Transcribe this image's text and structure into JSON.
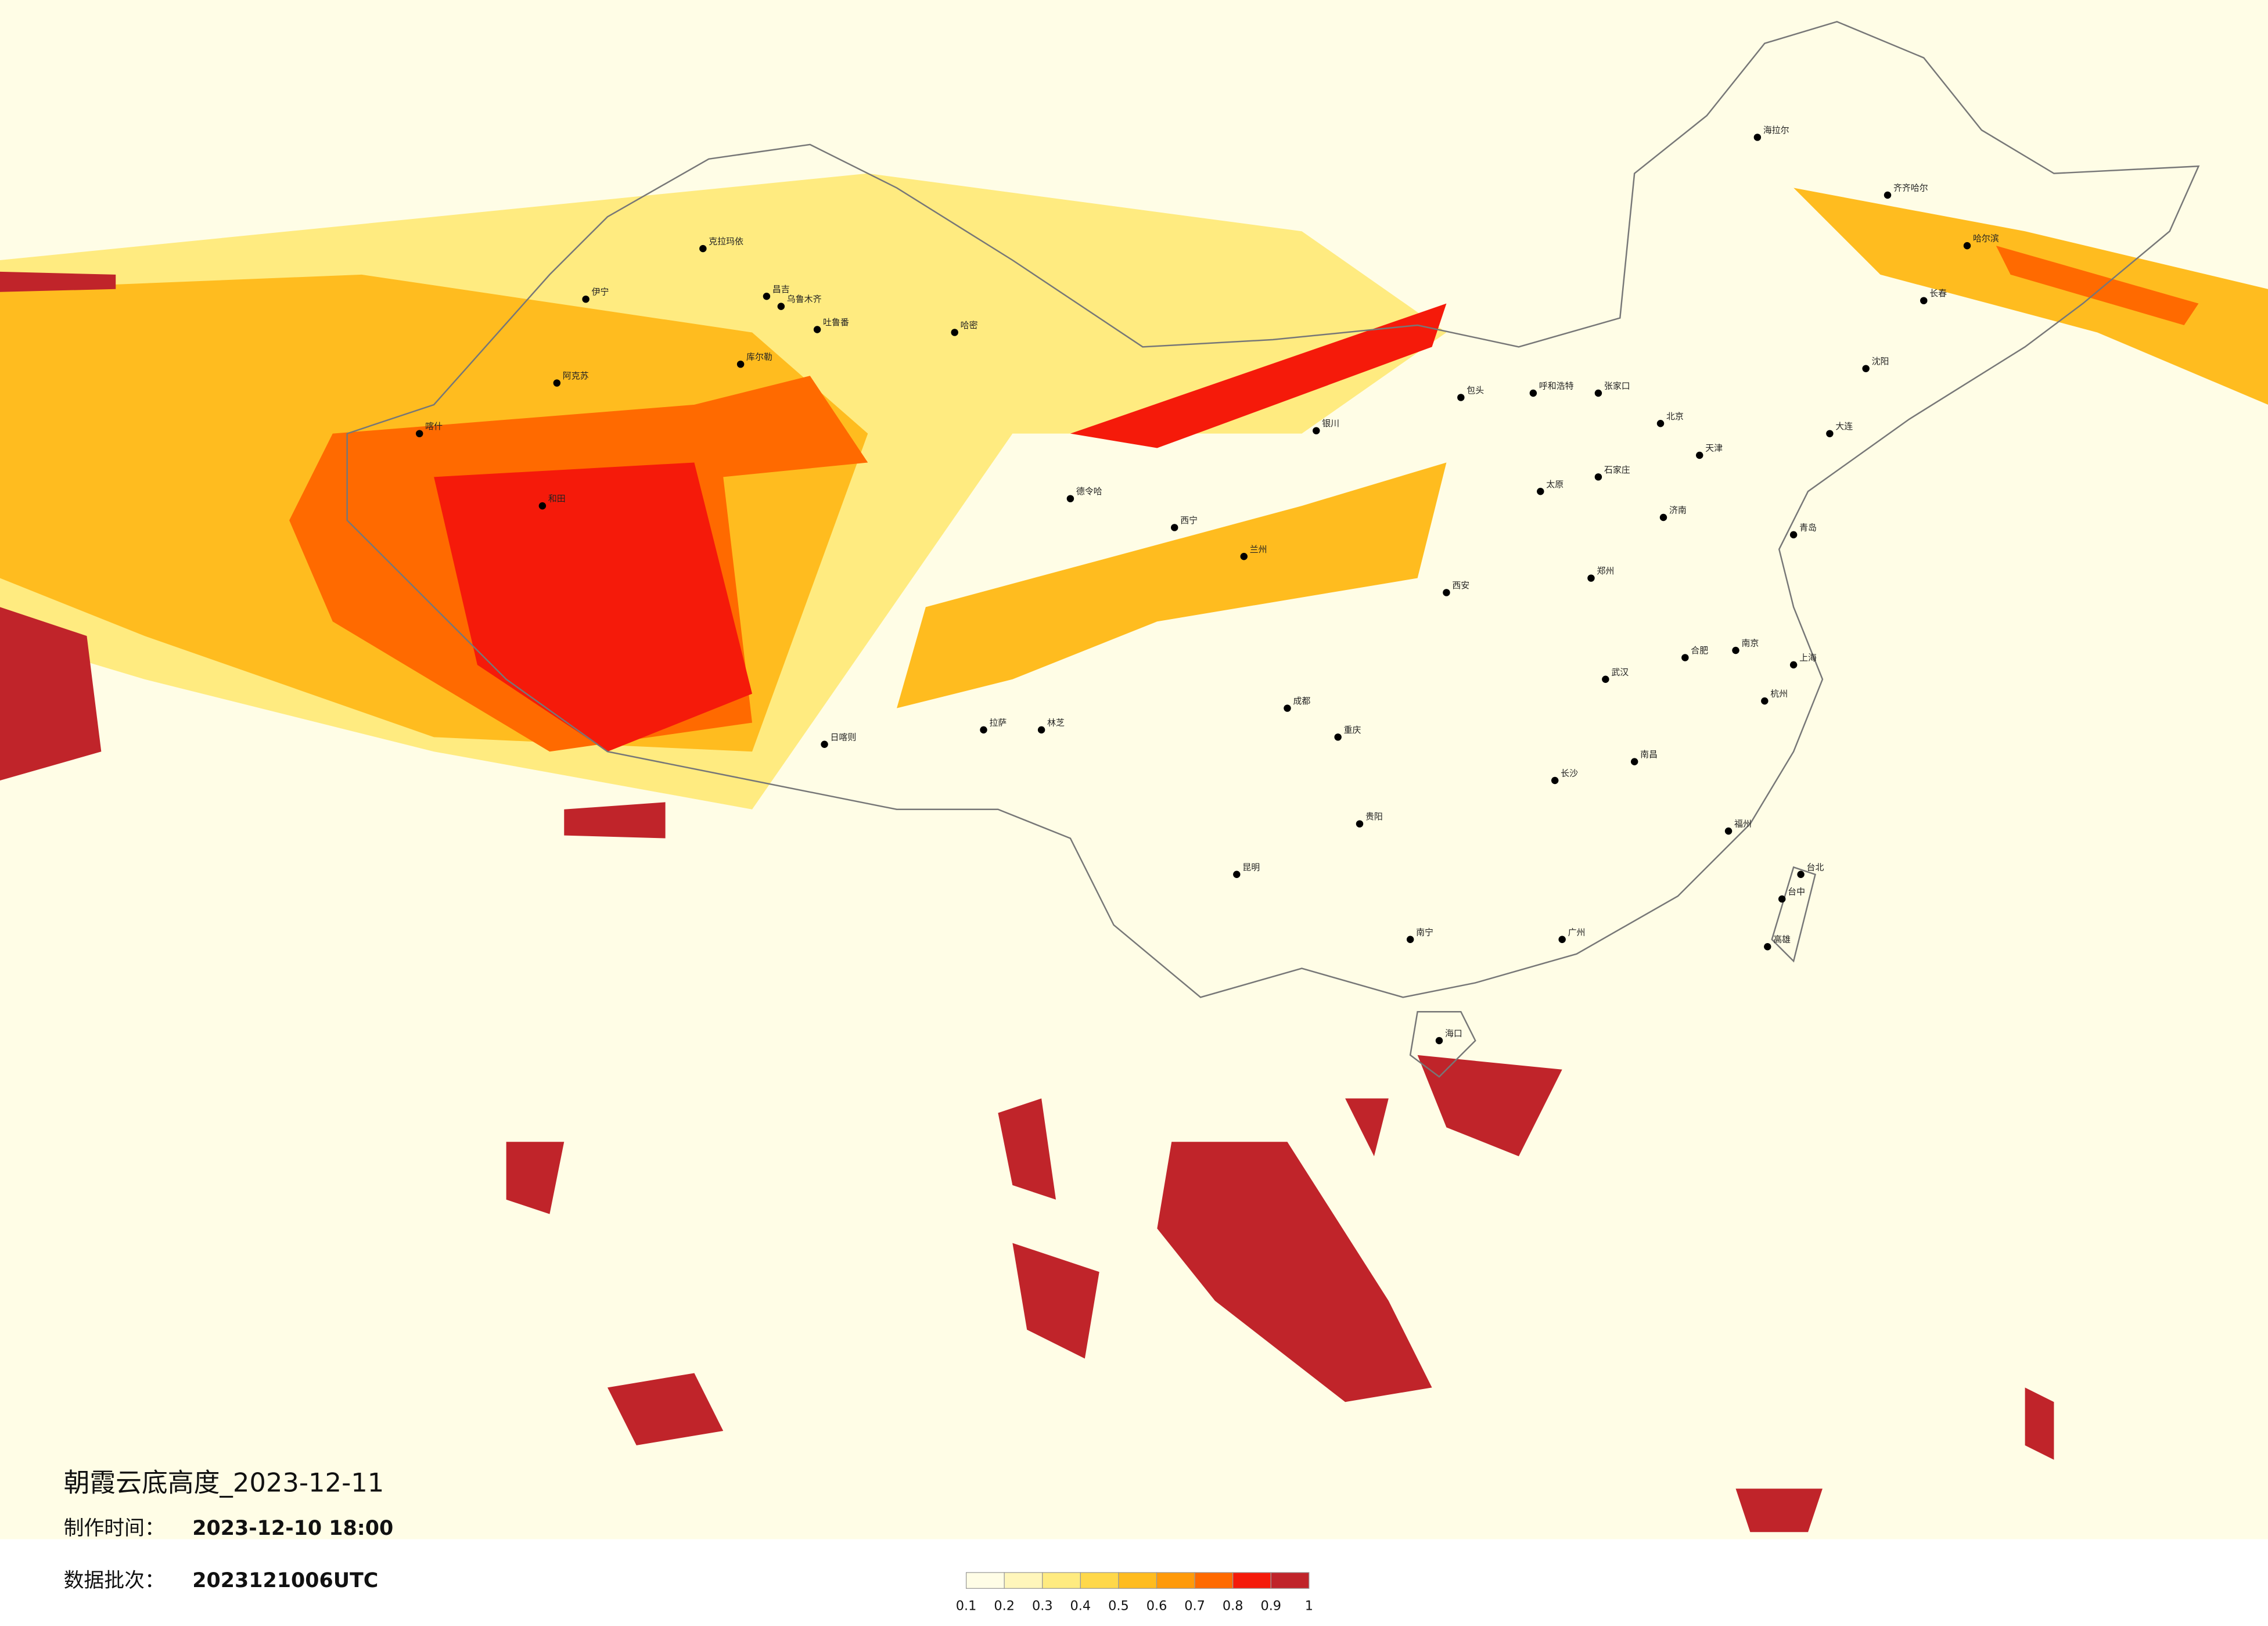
{
  "title": "朝霞云底高度_2023-12-11",
  "production_time": {
    "label": "制作时间：",
    "value": "2023-12-10 18:00"
  },
  "data_batch": {
    "label": "数据批次：",
    "value": "2023121006UTC"
  },
  "colorbar": {
    "ticks": [
      0.1,
      0.2,
      0.3,
      0.4,
      0.5,
      0.6,
      0.7,
      0.8,
      0.9,
      1
    ],
    "colors": [
      "#fffde6",
      "#fff6bb",
      "#ffeb80",
      "#ffd84a",
      "#ffbc1f",
      "#ff9a0a",
      "#ff6a00",
      "#f51a0a",
      "#c0242a"
    ]
  },
  "cities": [
    "克拉玛依",
    "伊宁",
    "昌吉",
    "乌鲁木齐",
    "吐鲁番",
    "哈密",
    "库尔勒",
    "阿克苏",
    "喀什",
    "和田",
    "德令哈",
    "西宁",
    "兰州",
    "银川",
    "呼和浩特",
    "包头",
    "张家口",
    "北京",
    "天津",
    "石家庄",
    "太原",
    "济南",
    "青岛",
    "郑州",
    "西安",
    "成都",
    "重庆",
    "武汉",
    "南京",
    "合肥",
    "上海",
    "杭州",
    "长沙",
    "南昌",
    "福州",
    "贵阳",
    "昆明",
    "南宁",
    "广州",
    "海口",
    "台北",
    "台中",
    "高雄",
    "沈阳",
    "长春",
    "哈尔滨",
    "齐齐哈尔",
    "海拉尔",
    "拉萨",
    "日喀则",
    "林芝",
    "大连"
  ]
}
